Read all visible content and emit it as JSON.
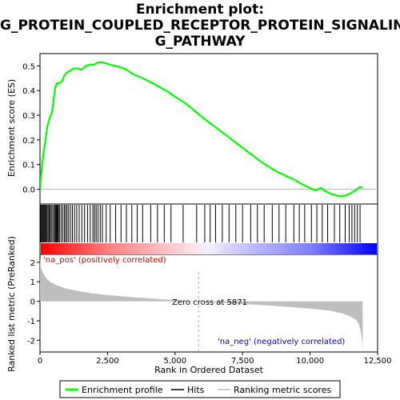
{
  "title_lines": [
    "Enrichment plot:",
    "G_PROTEIN_COUPLED_RECEPTOR_PROTEIN_SIGNALIN",
    "G_PATHWAY"
  ],
  "colors": {
    "es_curve": "#00ff00",
    "hits": "#000000",
    "metric_fill": "#bebebe",
    "zero_cross_line": "#aaaaaa",
    "pos_label": "#cc0000",
    "neg_label": "#0000cc",
    "heat_pos": "#ff0000",
    "heat_neg": "#0000ff"
  },
  "chart_data": [
    {
      "panel": "enrichment",
      "type": "line",
      "ylabel": "Enrichment score (ES)",
      "xlim": [
        0,
        12500
      ],
      "ylim": [
        -0.06,
        0.55
      ],
      "yticks": [
        "0.0",
        "0.1",
        "0.2",
        "0.3",
        "0.4",
        "0.5"
      ],
      "ytick_values": [
        0.0,
        0.1,
        0.2,
        0.3,
        0.4,
        0.5
      ],
      "grid": false,
      "series": [
        {
          "x": [
            0,
            60,
            120,
            200,
            280,
            360,
            440,
            500,
            560,
            620,
            700,
            800,
            900,
            1000,
            1100,
            1250,
            1400,
            1550,
            1700,
            1850,
            2000,
            2150,
            2300,
            2450,
            2600,
            2800,
            3000,
            3200,
            3400,
            3600,
            3800,
            4000,
            4250,
            4500,
            4750,
            5000,
            5300,
            5600,
            5871,
            6100,
            6400,
            6700,
            7000,
            7300,
            7600,
            7900,
            8200,
            8500,
            8800,
            9100,
            9400,
            9700,
            10000,
            10200,
            10400,
            10600,
            10800,
            11000,
            11150,
            11300,
            11450,
            11600,
            11750,
            11850,
            11950
          ],
          "y": [
            0.0,
            0.08,
            0.14,
            0.2,
            0.26,
            0.29,
            0.31,
            0.36,
            0.41,
            0.43,
            0.43,
            0.435,
            0.46,
            0.475,
            0.48,
            0.49,
            0.49,
            0.485,
            0.5,
            0.505,
            0.505,
            0.515,
            0.515,
            0.51,
            0.505,
            0.5,
            0.495,
            0.485,
            0.47,
            0.46,
            0.45,
            0.44,
            0.425,
            0.41,
            0.395,
            0.375,
            0.355,
            0.33,
            0.305,
            0.285,
            0.26,
            0.235,
            0.21,
            0.185,
            0.16,
            0.135,
            0.11,
            0.09,
            0.07,
            0.055,
            0.04,
            0.02,
            0.005,
            -0.005,
            0.005,
            -0.01,
            -0.02,
            -0.025,
            -0.03,
            -0.025,
            -0.02,
            -0.01,
            0.0,
            0.01,
            0.005
          ]
        }
      ]
    },
    {
      "panel": "hits",
      "type": "scatter",
      "description_free": true,
      "hit_ranks": [
        20,
        50,
        80,
        110,
        140,
        170,
        200,
        230,
        260,
        300,
        340,
        380,
        420,
        470,
        520,
        560,
        590,
        620,
        650,
        680,
        720,
        780,
        840,
        900,
        950,
        1000,
        1060,
        1130,
        1200,
        1280,
        1360,
        1450,
        1550,
        1650,
        1760,
        1860,
        1960,
        2020,
        2080,
        2150,
        2230,
        2310,
        2450,
        2600,
        2800,
        3000,
        3200,
        3400,
        3600,
        3800,
        4100,
        4350,
        4600,
        4850,
        5300,
        5800,
        6100,
        6300,
        6500,
        6750,
        7000,
        7250,
        7500,
        7800,
        8050,
        8300,
        8600,
        8850,
        9100,
        9400,
        9600,
        9800,
        10050,
        10250,
        10450,
        10650,
        10900,
        11100,
        11300,
        11450,
        11550,
        11650,
        11750,
        11850
      ]
    },
    {
      "panel": "ranked_metric",
      "type": "area",
      "ylabel": "Ranked list metric (PreRanked)",
      "xlabel": "Rank in Ordered Dataset",
      "xlim": [
        0,
        12500
      ],
      "ylim": [
        -2.6,
        2.4
      ],
      "xticks": [
        "0",
        "2,500",
        "5,000",
        "7,500",
        "10,000",
        "12,500"
      ],
      "xtick_values": [
        0,
        2500,
        5000,
        7500,
        10000,
        12500
      ],
      "yticks": [
        "-2",
        "-1",
        "0",
        "1",
        "2"
      ],
      "ytick_values": [
        -2,
        -1,
        0,
        1,
        2
      ],
      "zero_cross": 5871,
      "x": [
        0,
        30,
        80,
        150,
        250,
        400,
        600,
        900,
        1300,
        1800,
        2500,
        3500,
        4500,
        5500,
        5871,
        6500,
        7500,
        8500,
        9500,
        10200,
        10800,
        11200,
        11500,
        11700,
        11800,
        11870,
        11920,
        11950
      ],
      "y": [
        2.2,
        1.75,
        1.55,
        1.35,
        1.15,
        0.98,
        0.83,
        0.68,
        0.55,
        0.43,
        0.32,
        0.2,
        0.1,
        0.02,
        0.0,
        -0.06,
        -0.14,
        -0.22,
        -0.32,
        -0.4,
        -0.5,
        -0.62,
        -0.78,
        -0.95,
        -1.15,
        -1.5,
        -1.95,
        -2.5
      ]
    }
  ],
  "annotations": {
    "zero_cross_label": "Zero cross at 5871",
    "pos_label": "'na_pos' (positively correlated)",
    "neg_label": "'na_neg' (negatively correlated)"
  },
  "legend": {
    "items": [
      {
        "label": "Enrichment profile",
        "color": "#00ff00"
      },
      {
        "label": "Hits",
        "color": "#000000"
      },
      {
        "label": "Ranking metric scores",
        "color": "#bebebe"
      }
    ]
  }
}
